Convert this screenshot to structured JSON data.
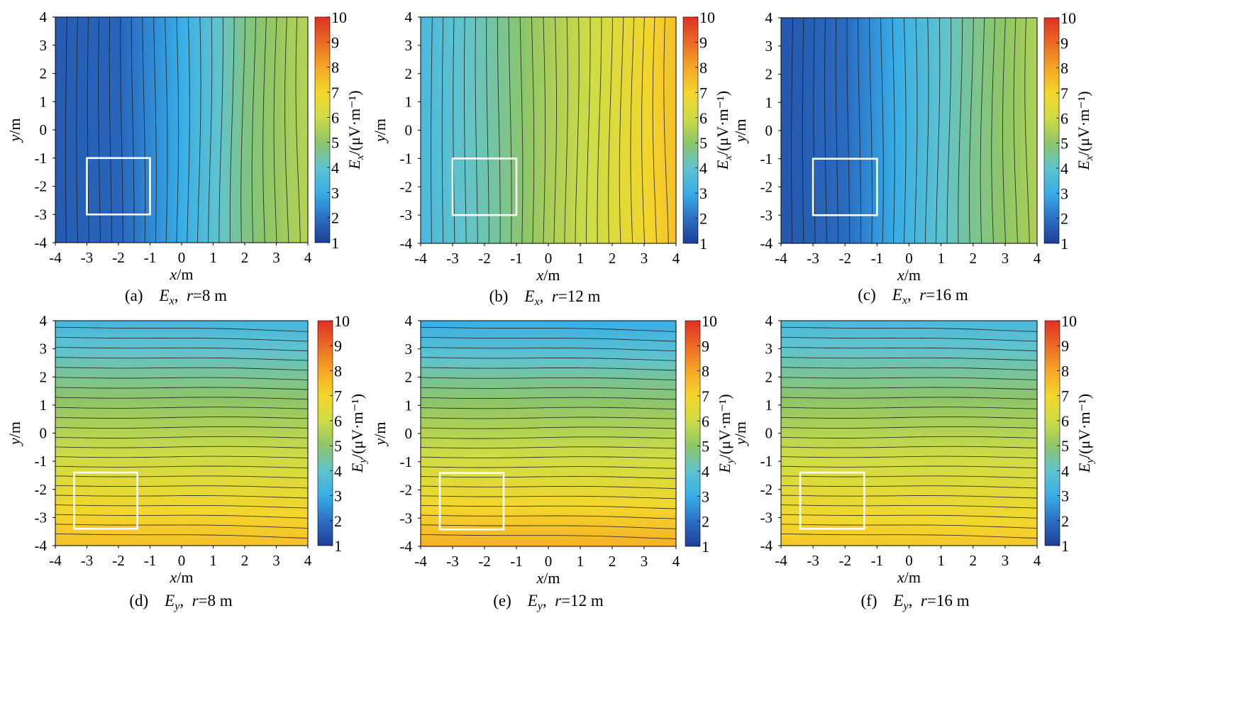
{
  "colorbar": {
    "ticks": [
      "10",
      "9",
      "8",
      "7",
      "6",
      "5",
      "4",
      "3",
      "2",
      "1"
    ],
    "range": [
      1,
      10
    ],
    "colormap": [
      "#1e3f96",
      "#2b6fc4",
      "#38aee6",
      "#5fc3cf",
      "#8dc569",
      "#cfdc45",
      "#f4d62b",
      "#f5a626",
      "#eb6a25",
      "#e03026"
    ]
  },
  "frame_color": "#000000",
  "box_color": "#ffffff",
  "contour_color": "#1a1a1a",
  "chart_data": [
    {
      "type": "heatmap",
      "id": "a",
      "panel_letter": "(a)",
      "field": "E",
      "sub": "x",
      "r_label": "=8 m",
      "xlabel": "x/m",
      "ylabel": "y/m",
      "colorbar_label": "E_x/(μV·m⁻¹)",
      "xlim": [
        -4,
        4
      ],
      "ylim": [
        -4,
        4
      ],
      "zlim": [
        1,
        10
      ],
      "xticks": [
        "-4",
        "-3",
        "-2",
        "-1",
        "0",
        "1",
        "2",
        "3",
        "4"
      ],
      "yticks": [
        "4",
        "3",
        "2",
        "1",
        "0",
        "-1",
        "-2",
        "-3",
        "-4"
      ],
      "profile": {
        "axis": "x",
        "x": [
          -4,
          -2,
          0,
          2,
          4
        ],
        "z": [
          1.6,
          1.8,
          3.0,
          4.7,
          5.6
        ]
      },
      "box": {
        "x": [
          -3,
          -1
        ],
        "y": [
          -3,
          -1
        ]
      }
    },
    {
      "type": "heatmap",
      "id": "b",
      "panel_letter": "(b)",
      "field": "E",
      "sub": "x",
      "r_label": "=12 m",
      "xlabel": "x/m",
      "ylabel": "y/m",
      "colorbar_label": "E_x/(μV·m⁻¹)",
      "xlim": [
        -4,
        4
      ],
      "ylim": [
        -4,
        4
      ],
      "zlim": [
        1,
        10
      ],
      "xticks": [
        "-4",
        "-3",
        "-2",
        "-1",
        "0",
        "1",
        "2",
        "3",
        "4"
      ],
      "yticks": [
        "4",
        "3",
        "2",
        "1",
        "0",
        "-1",
        "-2",
        "-3",
        "-4"
      ],
      "profile": {
        "axis": "x",
        "x": [
          -4,
          -2,
          0,
          2,
          4
        ],
        "z": [
          3.5,
          4.3,
          5.4,
          6.3,
          7.5
        ]
      },
      "box": {
        "x": [
          -3,
          -1
        ],
        "y": [
          -3,
          -1
        ]
      }
    },
    {
      "type": "heatmap",
      "id": "c",
      "panel_letter": "(c)",
      "field": "E",
      "sub": "x",
      "r_label": "=16 m",
      "xlabel": "x/m",
      "ylabel": "y/m",
      "colorbar_label": "E_x/(μV·m⁻¹)",
      "xlim": [
        -4,
        4
      ],
      "ylim": [
        -4,
        4
      ],
      "zlim": [
        1,
        10
      ],
      "xticks": [
        "-4",
        "-3",
        "-2",
        "-1",
        "0",
        "1",
        "2",
        "3",
        "4"
      ],
      "yticks": [
        "4",
        "3",
        "2",
        "1",
        "0",
        "-1",
        "-2",
        "-3",
        "-4"
      ],
      "profile": {
        "axis": "x",
        "x": [
          -4,
          -2,
          0,
          2,
          4
        ],
        "z": [
          1.5,
          1.9,
          3.3,
          4.6,
          5.5
        ]
      },
      "box": {
        "x": [
          -3,
          -1
        ],
        "y": [
          -3,
          -1
        ]
      }
    },
    {
      "type": "heatmap",
      "id": "d",
      "panel_letter": "(d)",
      "field": "E",
      "sub": "y",
      "r_label": "=8 m",
      "xlabel": "x/m",
      "ylabel": "y/m",
      "colorbar_label": "E_y/(μV·m⁻¹)",
      "xlim": [
        -4,
        4
      ],
      "ylim": [
        -4,
        4
      ],
      "zlim": [
        1,
        10
      ],
      "xticks": [
        "-4",
        "-3",
        "-2",
        "-1",
        "0",
        "1",
        "2",
        "3",
        "4"
      ],
      "yticks": [
        "4",
        "3",
        "2",
        "1",
        "0",
        "-1",
        "-2",
        "-3",
        "-4"
      ],
      "profile": {
        "axis": "y",
        "y": [
          4,
          2,
          0,
          -2,
          -4
        ],
        "z": [
          3.4,
          4.6,
          5.6,
          6.6,
          7.5
        ]
      },
      "box": {
        "x": [
          -3.4,
          -1.4
        ],
        "y": [
          -3.4,
          -1.4
        ]
      }
    },
    {
      "type": "heatmap",
      "id": "e",
      "panel_letter": "(e)",
      "field": "E",
      "sub": "y",
      "r_label": "=12 m",
      "xlabel": "x/m",
      "ylabel": "y/m",
      "colorbar_label": "E_y/(μV·m⁻¹)",
      "xlim": [
        -4,
        4
      ],
      "ylim": [
        -4,
        4
      ],
      "zlim": [
        1,
        10
      ],
      "xticks": [
        "-4",
        "-3",
        "-2",
        "-1",
        "0",
        "1",
        "2",
        "3",
        "4"
      ],
      "yticks": [
        "4",
        "3",
        "2",
        "1",
        "0",
        "-1",
        "-2",
        "-3",
        "-4"
      ],
      "profile": {
        "axis": "y",
        "y": [
          4,
          2,
          0,
          -2,
          -4
        ],
        "z": [
          3.0,
          4.5,
          5.6,
          6.6,
          7.8
        ]
      },
      "box": {
        "x": [
          -3.4,
          -1.4
        ],
        "y": [
          -3.4,
          -1.4
        ]
      }
    },
    {
      "type": "heatmap",
      "id": "f",
      "panel_letter": "(f)",
      "field": "E",
      "sub": "y",
      "r_label": "=16 m",
      "xlabel": "x/m",
      "ylabel": "y/m",
      "colorbar_label": "E_y/(μV·m⁻¹)",
      "xlim": [
        -4,
        4
      ],
      "ylim": [
        -4,
        4
      ],
      "zlim": [
        1,
        10
      ],
      "xticks": [
        "-4",
        "-3",
        "-2",
        "-1",
        "0",
        "1",
        "2",
        "3",
        "4"
      ],
      "yticks": [
        "4",
        "3",
        "2",
        "1",
        "0",
        "-1",
        "-2",
        "-3",
        "-4"
      ],
      "profile": {
        "axis": "y",
        "y": [
          4,
          2,
          0,
          -2,
          -4
        ],
        "z": [
          3.5,
          4.6,
          5.6,
          6.5,
          7.3
        ]
      },
      "box": {
        "x": [
          -3.4,
          -1.4
        ],
        "y": [
          -3.4,
          -1.4
        ]
      }
    }
  ]
}
